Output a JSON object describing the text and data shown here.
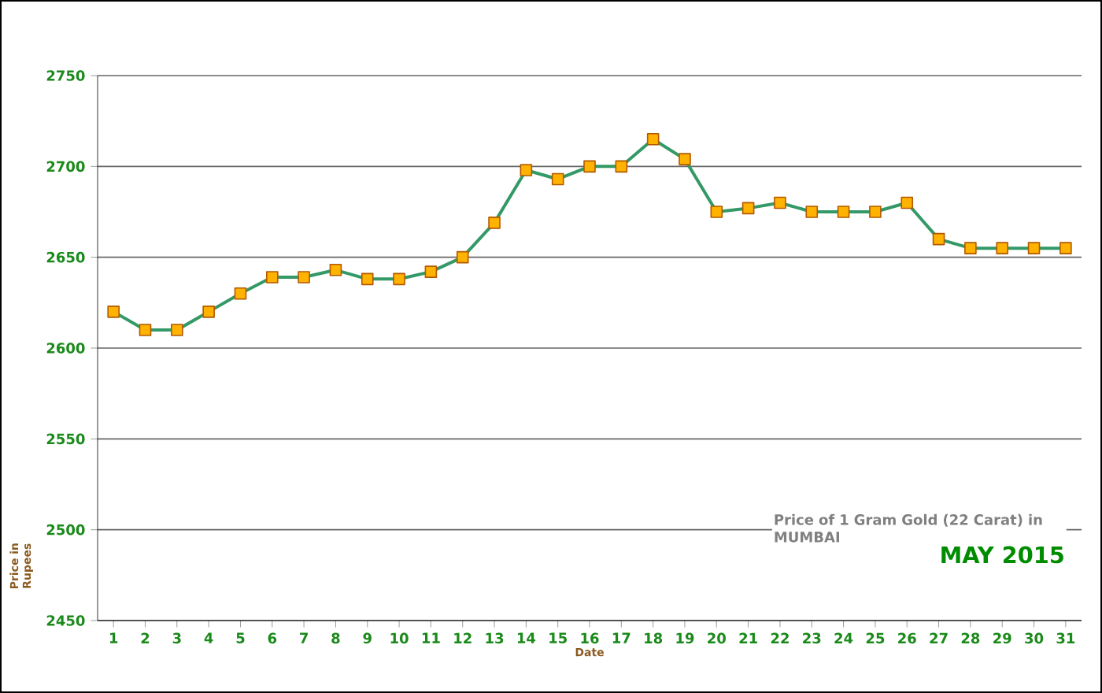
{
  "chart_data": {
    "type": "line",
    "title": "Price of 1 Gram Gold (22 Carat) in MUMBAI",
    "subtitle": "MAY 2015",
    "xlabel": "Date",
    "ylabel": "Price in Rupees",
    "categories": [
      "1",
      "2",
      "3",
      "4",
      "5",
      "6",
      "7",
      "8",
      "9",
      "10",
      "11",
      "12",
      "13",
      "14",
      "15",
      "16",
      "17",
      "18",
      "19",
      "20",
      "21",
      "22",
      "23",
      "24",
      "25",
      "26",
      "27",
      "28",
      "29",
      "30",
      "31"
    ],
    "series": [
      {
        "color": "#339966",
        "values": [
          2620,
          2610,
          2610,
          2620,
          2630,
          2639,
          2639,
          2643,
          2638,
          2638,
          2642,
          2650,
          2669,
          2698,
          2693,
          2700,
          2700,
          2715,
          2704,
          2675,
          2677,
          2680,
          2675,
          2675,
          2675,
          2680,
          2660,
          2655,
          2655,
          2655,
          2655
        ]
      }
    ],
    "ylim": [
      2450,
      2750
    ],
    "yticks": [
      2450,
      2500,
      2550,
      2600,
      2650,
      2700,
      2750
    ],
    "grid": "y",
    "marker": "square",
    "line_style": "solid"
  }
}
